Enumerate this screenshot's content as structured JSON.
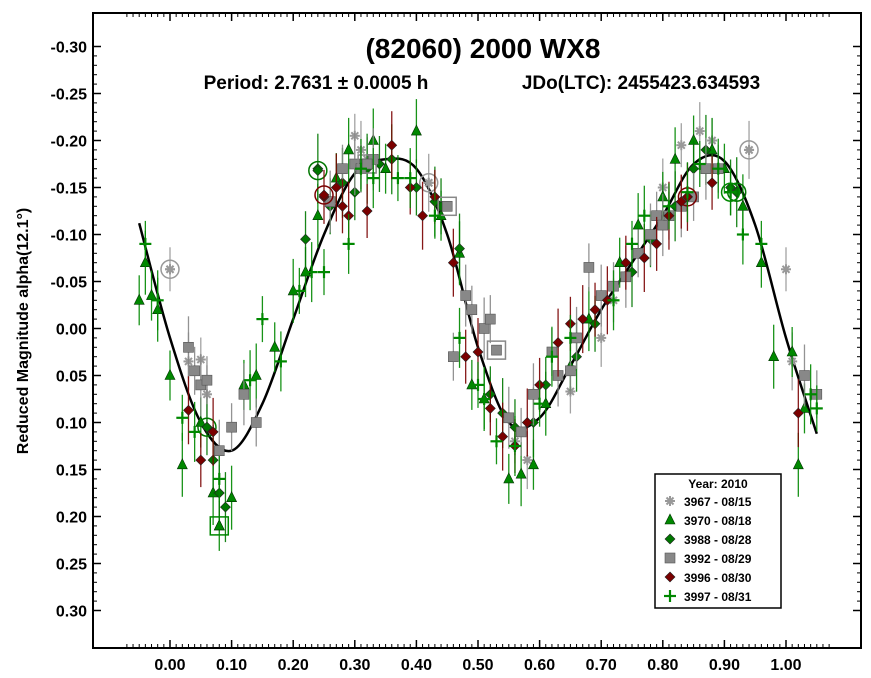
{
  "chart_data": {
    "type": "scatter",
    "title": "(82060) 2000 WX8",
    "subtitle_period": "Period: 2.7631 ± 0.0005 h",
    "subtitle_epoch": "JDo(LTC): 2455423.634593",
    "xlabel": "",
    "ylabel": "Reduced Magnitude alpha(12.1°)",
    "xlim": [
      -0.075,
      1.075
    ],
    "ylim": [
      -0.3,
      0.3
    ],
    "y_inverted": true,
    "xticks": [
      "0.00",
      "0.10",
      "0.20",
      "0.30",
      "0.40",
      "0.50",
      "0.60",
      "0.70",
      "0.80",
      "0.90",
      "1.00"
    ],
    "yticks": [
      "-0.30",
      "-0.25",
      "-0.20",
      "-0.15",
      "-0.10",
      "-0.05",
      "0.00",
      "0.05",
      "0.10",
      "0.15",
      "0.20",
      "0.25",
      "0.30"
    ],
    "grid": false,
    "legend_title": "Year: 2010",
    "legend_position": "bottom-right",
    "fit_curve": {
      "color": "#000000",
      "x": [
        -0.05,
        0.0,
        0.05,
        0.1,
        0.15,
        0.2,
        0.25,
        0.3,
        0.35,
        0.4,
        0.45,
        0.5,
        0.55,
        0.6,
        0.65,
        0.7,
        0.75,
        0.8,
        0.85,
        0.9,
        0.95,
        1.0,
        1.05
      ],
      "y": [
        -0.112,
        0.01,
        0.1,
        0.13,
        0.08,
        -0.01,
        -0.1,
        -0.165,
        -0.18,
        -0.17,
        -0.1,
        0.02,
        0.1,
        0.095,
        0.04,
        -0.02,
        -0.07,
        -0.12,
        -0.175,
        -0.178,
        -0.11,
        0.01,
        0.112
      ]
    },
    "series": [
      {
        "name": "3967 - 08/15",
        "marker": "asterisk",
        "color": "#999999",
        "x": [
          0.0,
          0.03,
          0.05,
          0.06,
          0.3,
          0.31,
          0.32,
          0.42,
          0.56,
          0.58,
          0.65,
          0.7,
          0.72,
          0.8,
          0.83,
          0.86,
          0.88,
          0.94,
          1.0,
          1.01
        ],
        "y": [
          -0.063,
          0.035,
          0.033,
          0.07,
          -0.205,
          -0.19,
          -0.18,
          -0.155,
          0.12,
          0.14,
          0.067,
          0.01,
          -0.03,
          -0.15,
          -0.195,
          -0.21,
          -0.2,
          -0.19,
          -0.063,
          0.035
        ],
        "highlight": [
          {
            "x": 0.0,
            "y": -0.063
          },
          {
            "x": 0.42,
            "y": -0.155
          },
          {
            "x": 0.94,
            "y": -0.19
          }
        ]
      },
      {
        "name": "3970 - 08/18",
        "marker": "triangle",
        "color": "#008800",
        "x": [
          -0.05,
          -0.04,
          -0.03,
          -0.02,
          0.0,
          0.02,
          0.05,
          0.07,
          0.08,
          0.1,
          0.12,
          0.14,
          0.17,
          0.2,
          0.22,
          0.24,
          0.27,
          0.29,
          0.31,
          0.33,
          0.35,
          0.4,
          0.44,
          0.47,
          0.49,
          0.51,
          0.55,
          0.57,
          0.59,
          0.61,
          0.65,
          0.68,
          0.73,
          0.76,
          0.8,
          0.82,
          0.85,
          0.88,
          0.9,
          0.93,
          0.96,
          0.98,
          1.01,
          1.02,
          1.03
        ],
        "y": [
          -0.03,
          -0.07,
          -0.035,
          -0.02,
          0.05,
          0.145,
          0.1,
          0.175,
          0.21,
          0.18,
          0.06,
          0.05,
          0.02,
          -0.04,
          -0.06,
          -0.12,
          -0.16,
          -0.19,
          -0.175,
          -0.2,
          -0.17,
          -0.21,
          -0.12,
          -0.08,
          0.06,
          0.075,
          0.16,
          0.155,
          0.145,
          0.08,
          0.04,
          -0.01,
          -0.07,
          -0.11,
          -0.14,
          -0.18,
          -0.2,
          -0.19,
          -0.17,
          -0.13,
          -0.07,
          0.03,
          0.025,
          0.145,
          0.085
        ],
        "highlight": [
          {
            "x": 0.08,
            "y": 0.21
          }
        ]
      },
      {
        "name": "3988 - 08/28",
        "marker": "diamond",
        "color": "#007700",
        "x": [
          0.06,
          0.07,
          0.08,
          0.09,
          0.22,
          0.24,
          0.26,
          0.28,
          0.3,
          0.32,
          0.34,
          0.36,
          0.4,
          0.43,
          0.44,
          0.47,
          0.52,
          0.54,
          0.56,
          0.59,
          0.61,
          0.66,
          0.69,
          0.75,
          0.78,
          0.82,
          0.85,
          0.87,
          0.91,
          0.92
        ],
        "y": [
          0.105,
          0.14,
          0.175,
          0.19,
          -0.095,
          -0.17,
          -0.13,
          -0.155,
          -0.145,
          -0.17,
          -0.175,
          -0.18,
          -0.15,
          -0.135,
          -0.13,
          -0.085,
          0.07,
          0.09,
          0.105,
          0.1,
          0.06,
          0.03,
          -0.005,
          -0.06,
          -0.095,
          -0.13,
          -0.17,
          -0.19,
          -0.15,
          -0.145
        ],
        "highlight": [
          {
            "x": 0.06,
            "y": 0.105
          },
          {
            "x": 0.24,
            "y": -0.168
          },
          {
            "x": 0.92,
            "y": -0.145
          }
        ]
      },
      {
        "name": "3992 - 08/29",
        "marker": "square",
        "color": "#888888",
        "x": [
          0.03,
          0.04,
          0.05,
          0.06,
          0.08,
          0.1,
          0.12,
          0.14,
          0.26,
          0.28,
          0.3,
          0.31,
          0.33,
          0.46,
          0.48,
          0.49,
          0.51,
          0.52,
          0.55,
          0.57,
          0.59,
          0.62,
          0.63,
          0.65,
          0.66,
          0.68,
          0.7,
          0.72,
          0.74,
          0.76,
          0.78,
          0.79,
          0.8,
          0.81,
          0.83,
          0.85,
          0.87,
          0.89,
          1.03,
          1.05
        ],
        "y": [
          0.02,
          0.045,
          0.06,
          0.055,
          0.13,
          0.105,
          0.07,
          0.1,
          -0.135,
          -0.17,
          -0.175,
          -0.17,
          -0.18,
          0.03,
          -0.035,
          -0.02,
          0.0,
          -0.01,
          0.095,
          0.11,
          0.07,
          0.025,
          0.05,
          0.045,
          0.01,
          -0.065,
          -0.035,
          -0.045,
          -0.055,
          -0.08,
          -0.1,
          -0.12,
          -0.11,
          -0.12,
          -0.13,
          -0.14,
          -0.17,
          -0.17,
          0.05,
          0.07
        ],
        "highlight": [
          {
            "x": 0.32,
            "y": -0.175
          },
          {
            "x": 0.45,
            "y": -0.13
          },
          {
            "x": 0.53,
            "y": 0.023
          }
        ]
      },
      {
        "name": "3996 - 08/30",
        "marker": "diamond",
        "color": "#7a0000",
        "x": [
          0.03,
          0.05,
          0.07,
          0.25,
          0.27,
          0.28,
          0.29,
          0.32,
          0.36,
          0.39,
          0.41,
          0.43,
          0.46,
          0.48,
          0.5,
          0.52,
          0.54,
          0.56,
          0.58,
          0.6,
          0.63,
          0.65,
          0.67,
          0.69,
          0.71,
          0.74,
          0.77,
          0.79,
          0.81,
          0.83,
          0.84,
          0.88,
          1.02
        ],
        "y": [
          0.087,
          0.14,
          0.11,
          -0.14,
          -0.15,
          -0.13,
          -0.12,
          -0.125,
          -0.195,
          -0.15,
          -0.12,
          -0.14,
          -0.07,
          0.03,
          0.025,
          0.085,
          0.115,
          0.125,
          0.1,
          0.06,
          0.015,
          -0.005,
          -0.01,
          -0.02,
          -0.03,
          -0.07,
          -0.075,
          -0.09,
          -0.12,
          -0.135,
          -0.14,
          -0.155,
          0.09
        ],
        "highlight": [
          {
            "x": 0.25,
            "y": -0.142
          },
          {
            "x": 0.84,
            "y": -0.14
          }
        ]
      },
      {
        "name": "3997 - 08/31",
        "marker": "plus",
        "color": "#008800",
        "x": [
          -0.04,
          -0.02,
          0.02,
          0.04,
          0.08,
          0.13,
          0.15,
          0.18,
          0.21,
          0.23,
          0.25,
          0.29,
          0.31,
          0.33,
          0.37,
          0.39,
          0.43,
          0.47,
          0.5,
          0.51,
          0.53,
          0.56,
          0.6,
          0.62,
          0.65,
          0.72,
          0.75,
          0.77,
          0.81,
          0.84,
          0.86,
          0.89,
          0.91,
          0.93,
          0.96,
          1.04,
          1.05
        ],
        "y": [
          -0.09,
          -0.03,
          0.095,
          0.11,
          0.16,
          0.055,
          -0.01,
          0.035,
          -0.04,
          -0.06,
          -0.06,
          -0.09,
          -0.17,
          -0.16,
          -0.16,
          -0.16,
          -0.12,
          0.01,
          0.06,
          0.075,
          0.12,
          0.125,
          0.08,
          0.03,
          0.01,
          -0.03,
          -0.09,
          -0.12,
          -0.13,
          -0.145,
          -0.175,
          -0.17,
          -0.145,
          -0.1,
          -0.09,
          0.07,
          0.085
        ],
        "highlight": [
          {
            "x": 0.91,
            "y": -0.145
          }
        ]
      }
    ]
  }
}
